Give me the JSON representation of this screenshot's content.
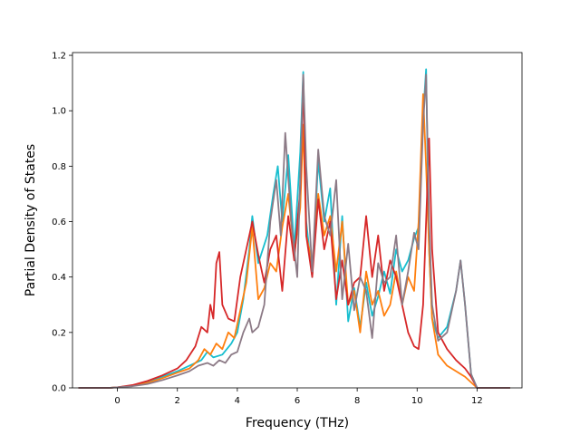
{
  "chart_data": {
    "type": "line",
    "title": "",
    "xlabel": "Frequency (THz)",
    "ylabel": "Partial Density of States",
    "xlim": [
      -1.5,
      13.5
    ],
    "ylim": [
      0,
      1.21
    ],
    "x_ticks": [
      0,
      2,
      4,
      6,
      8,
      10,
      12
    ],
    "y_ticks": [
      0.0,
      0.2,
      0.4,
      0.6,
      0.8,
      1.0,
      1.2
    ],
    "x_tick_labels": [
      "0",
      "2",
      "4",
      "6",
      "8",
      "10",
      "12"
    ],
    "y_tick_labels": [
      "0.0",
      "0.2",
      "0.4",
      "0.6",
      "0.8",
      "1.0",
      "1.2"
    ],
    "grid": false,
    "legend": "none",
    "series": [
      {
        "color": "#17becf",
        "points": [
          [
            -1.3,
            0
          ],
          [
            -0.3,
            0
          ],
          [
            0.0,
            0.002
          ],
          [
            0.5,
            0.008
          ],
          [
            1.0,
            0.02
          ],
          [
            1.5,
            0.04
          ],
          [
            2.0,
            0.06
          ],
          [
            2.4,
            0.08
          ],
          [
            2.8,
            0.1
          ],
          [
            3.0,
            0.13
          ],
          [
            3.2,
            0.11
          ],
          [
            3.5,
            0.12
          ],
          [
            3.8,
            0.16
          ],
          [
            4.0,
            0.2
          ],
          [
            4.2,
            0.32
          ],
          [
            4.4,
            0.5
          ],
          [
            4.5,
            0.62
          ],
          [
            4.7,
            0.45
          ],
          [
            5.0,
            0.55
          ],
          [
            5.2,
            0.7
          ],
          [
            5.35,
            0.8
          ],
          [
            5.5,
            0.6
          ],
          [
            5.7,
            0.84
          ],
          [
            5.9,
            0.5
          ],
          [
            6.1,
            0.85
          ],
          [
            6.2,
            1.14
          ],
          [
            6.3,
            0.6
          ],
          [
            6.5,
            0.4
          ],
          [
            6.7,
            0.82
          ],
          [
            6.9,
            0.6
          ],
          [
            7.1,
            0.72
          ],
          [
            7.3,
            0.3
          ],
          [
            7.5,
            0.62
          ],
          [
            7.7,
            0.24
          ],
          [
            7.9,
            0.36
          ],
          [
            8.1,
            0.22
          ],
          [
            8.3,
            0.38
          ],
          [
            8.5,
            0.26
          ],
          [
            8.7,
            0.33
          ],
          [
            8.9,
            0.42
          ],
          [
            9.1,
            0.34
          ],
          [
            9.3,
            0.5
          ],
          [
            9.5,
            0.42
          ],
          [
            9.7,
            0.46
          ],
          [
            9.9,
            0.54
          ],
          [
            10.05,
            0.58
          ],
          [
            10.2,
            0.98
          ],
          [
            10.3,
            1.15
          ],
          [
            10.4,
            0.5
          ],
          [
            10.5,
            0.25
          ],
          [
            10.7,
            0.18
          ],
          [
            11.0,
            0.22
          ],
          [
            11.3,
            0.35
          ],
          [
            11.45,
            0.46
          ],
          [
            11.6,
            0.3
          ],
          [
            11.8,
            0.05
          ],
          [
            12.0,
            0
          ],
          [
            13.1,
            0
          ]
        ]
      },
      {
        "color": "#ff7f0e",
        "points": [
          [
            -1.3,
            0
          ],
          [
            -0.3,
            0
          ],
          [
            0.0,
            0.002
          ],
          [
            0.5,
            0.008
          ],
          [
            1.0,
            0.018
          ],
          [
            1.5,
            0.035
          ],
          [
            2.0,
            0.055
          ],
          [
            2.4,
            0.07
          ],
          [
            2.7,
            0.1
          ],
          [
            2.9,
            0.14
          ],
          [
            3.1,
            0.12
          ],
          [
            3.3,
            0.16
          ],
          [
            3.5,
            0.14
          ],
          [
            3.7,
            0.2
          ],
          [
            3.9,
            0.18
          ],
          [
            4.1,
            0.28
          ],
          [
            4.3,
            0.38
          ],
          [
            4.5,
            0.58
          ],
          [
            4.7,
            0.32
          ],
          [
            4.9,
            0.36
          ],
          [
            5.1,
            0.45
          ],
          [
            5.3,
            0.42
          ],
          [
            5.5,
            0.58
          ],
          [
            5.7,
            0.7
          ],
          [
            5.9,
            0.48
          ],
          [
            6.1,
            0.65
          ],
          [
            6.2,
            0.95
          ],
          [
            6.3,
            0.55
          ],
          [
            6.5,
            0.45
          ],
          [
            6.7,
            0.7
          ],
          [
            6.9,
            0.55
          ],
          [
            7.1,
            0.62
          ],
          [
            7.3,
            0.42
          ],
          [
            7.5,
            0.6
          ],
          [
            7.7,
            0.3
          ],
          [
            7.9,
            0.35
          ],
          [
            8.1,
            0.2
          ],
          [
            8.3,
            0.42
          ],
          [
            8.5,
            0.3
          ],
          [
            8.7,
            0.35
          ],
          [
            8.9,
            0.26
          ],
          [
            9.1,
            0.3
          ],
          [
            9.3,
            0.42
          ],
          [
            9.5,
            0.3
          ],
          [
            9.7,
            0.4
          ],
          [
            9.9,
            0.35
          ],
          [
            10.05,
            0.6
          ],
          [
            10.2,
            1.06
          ],
          [
            10.3,
            0.8
          ],
          [
            10.4,
            0.5
          ],
          [
            10.5,
            0.25
          ],
          [
            10.7,
            0.12
          ],
          [
            11.0,
            0.08
          ],
          [
            11.3,
            0.06
          ],
          [
            11.6,
            0.04
          ],
          [
            11.8,
            0.02
          ],
          [
            12.0,
            0
          ],
          [
            13.1,
            0
          ]
        ]
      },
      {
        "color": "#d62728",
        "points": [
          [
            -1.3,
            0
          ],
          [
            -0.3,
            0
          ],
          [
            0.0,
            0.002
          ],
          [
            0.5,
            0.01
          ],
          [
            1.0,
            0.025
          ],
          [
            1.5,
            0.045
          ],
          [
            2.0,
            0.07
          ],
          [
            2.3,
            0.1
          ],
          [
            2.6,
            0.15
          ],
          [
            2.8,
            0.22
          ],
          [
            3.0,
            0.2
          ],
          [
            3.1,
            0.3
          ],
          [
            3.2,
            0.25
          ],
          [
            3.3,
            0.45
          ],
          [
            3.4,
            0.49
          ],
          [
            3.5,
            0.3
          ],
          [
            3.7,
            0.25
          ],
          [
            3.9,
            0.24
          ],
          [
            4.1,
            0.4
          ],
          [
            4.3,
            0.5
          ],
          [
            4.5,
            0.6
          ],
          [
            4.7,
            0.48
          ],
          [
            4.9,
            0.38
          ],
          [
            5.1,
            0.5
          ],
          [
            5.3,
            0.55
          ],
          [
            5.5,
            0.35
          ],
          [
            5.7,
            0.62
          ],
          [
            5.9,
            0.46
          ],
          [
            6.1,
            0.72
          ],
          [
            6.2,
            1.12
          ],
          [
            6.3,
            0.55
          ],
          [
            6.5,
            0.4
          ],
          [
            6.7,
            0.68
          ],
          [
            6.9,
            0.5
          ],
          [
            7.1,
            0.6
          ],
          [
            7.3,
            0.32
          ],
          [
            7.5,
            0.46
          ],
          [
            7.7,
            0.3
          ],
          [
            7.9,
            0.38
          ],
          [
            8.1,
            0.4
          ],
          [
            8.3,
            0.62
          ],
          [
            8.5,
            0.4
          ],
          [
            8.7,
            0.55
          ],
          [
            8.9,
            0.35
          ],
          [
            9.1,
            0.46
          ],
          [
            9.3,
            0.4
          ],
          [
            9.5,
            0.3
          ],
          [
            9.7,
            0.2
          ],
          [
            9.9,
            0.15
          ],
          [
            10.05,
            0.14
          ],
          [
            10.2,
            0.3
          ],
          [
            10.4,
            0.9
          ],
          [
            10.5,
            0.5
          ],
          [
            10.7,
            0.2
          ],
          [
            11.0,
            0.14
          ],
          [
            11.3,
            0.1
          ],
          [
            11.6,
            0.07
          ],
          [
            11.8,
            0.04
          ],
          [
            12.0,
            0
          ],
          [
            13.1,
            0
          ]
        ]
      },
      {
        "color": "#8c7a86",
        "points": [
          [
            -1.3,
            0
          ],
          [
            -0.3,
            0
          ],
          [
            0.0,
            0.002
          ],
          [
            0.5,
            0.006
          ],
          [
            1.0,
            0.014
          ],
          [
            1.5,
            0.028
          ],
          [
            2.0,
            0.045
          ],
          [
            2.4,
            0.06
          ],
          [
            2.7,
            0.08
          ],
          [
            3.0,
            0.09
          ],
          [
            3.2,
            0.08
          ],
          [
            3.4,
            0.1
          ],
          [
            3.6,
            0.09
          ],
          [
            3.8,
            0.12
          ],
          [
            4.0,
            0.13
          ],
          [
            4.2,
            0.2
          ],
          [
            4.4,
            0.25
          ],
          [
            4.5,
            0.2
          ],
          [
            4.7,
            0.22
          ],
          [
            4.9,
            0.3
          ],
          [
            5.1,
            0.6
          ],
          [
            5.3,
            0.75
          ],
          [
            5.45,
            0.55
          ],
          [
            5.6,
            0.92
          ],
          [
            5.8,
            0.6
          ],
          [
            6.0,
            0.4
          ],
          [
            6.2,
            1.13
          ],
          [
            6.3,
            0.8
          ],
          [
            6.5,
            0.42
          ],
          [
            6.7,
            0.86
          ],
          [
            6.9,
            0.62
          ],
          [
            7.1,
            0.55
          ],
          [
            7.3,
            0.75
          ],
          [
            7.5,
            0.32
          ],
          [
            7.7,
            0.52
          ],
          [
            7.9,
            0.28
          ],
          [
            8.1,
            0.4
          ],
          [
            8.3,
            0.35
          ],
          [
            8.5,
            0.18
          ],
          [
            8.7,
            0.45
          ],
          [
            8.9,
            0.38
          ],
          [
            9.1,
            0.4
          ],
          [
            9.3,
            0.55
          ],
          [
            9.5,
            0.3
          ],
          [
            9.7,
            0.42
          ],
          [
            9.9,
            0.56
          ],
          [
            10.05,
            0.5
          ],
          [
            10.2,
            0.95
          ],
          [
            10.3,
            1.13
          ],
          [
            10.4,
            0.6
          ],
          [
            10.5,
            0.3
          ],
          [
            10.7,
            0.17
          ],
          [
            11.0,
            0.2
          ],
          [
            11.3,
            0.35
          ],
          [
            11.45,
            0.46
          ],
          [
            11.6,
            0.3
          ],
          [
            11.8,
            0.05
          ],
          [
            12.0,
            0
          ],
          [
            13.1,
            0
          ]
        ]
      }
    ]
  }
}
